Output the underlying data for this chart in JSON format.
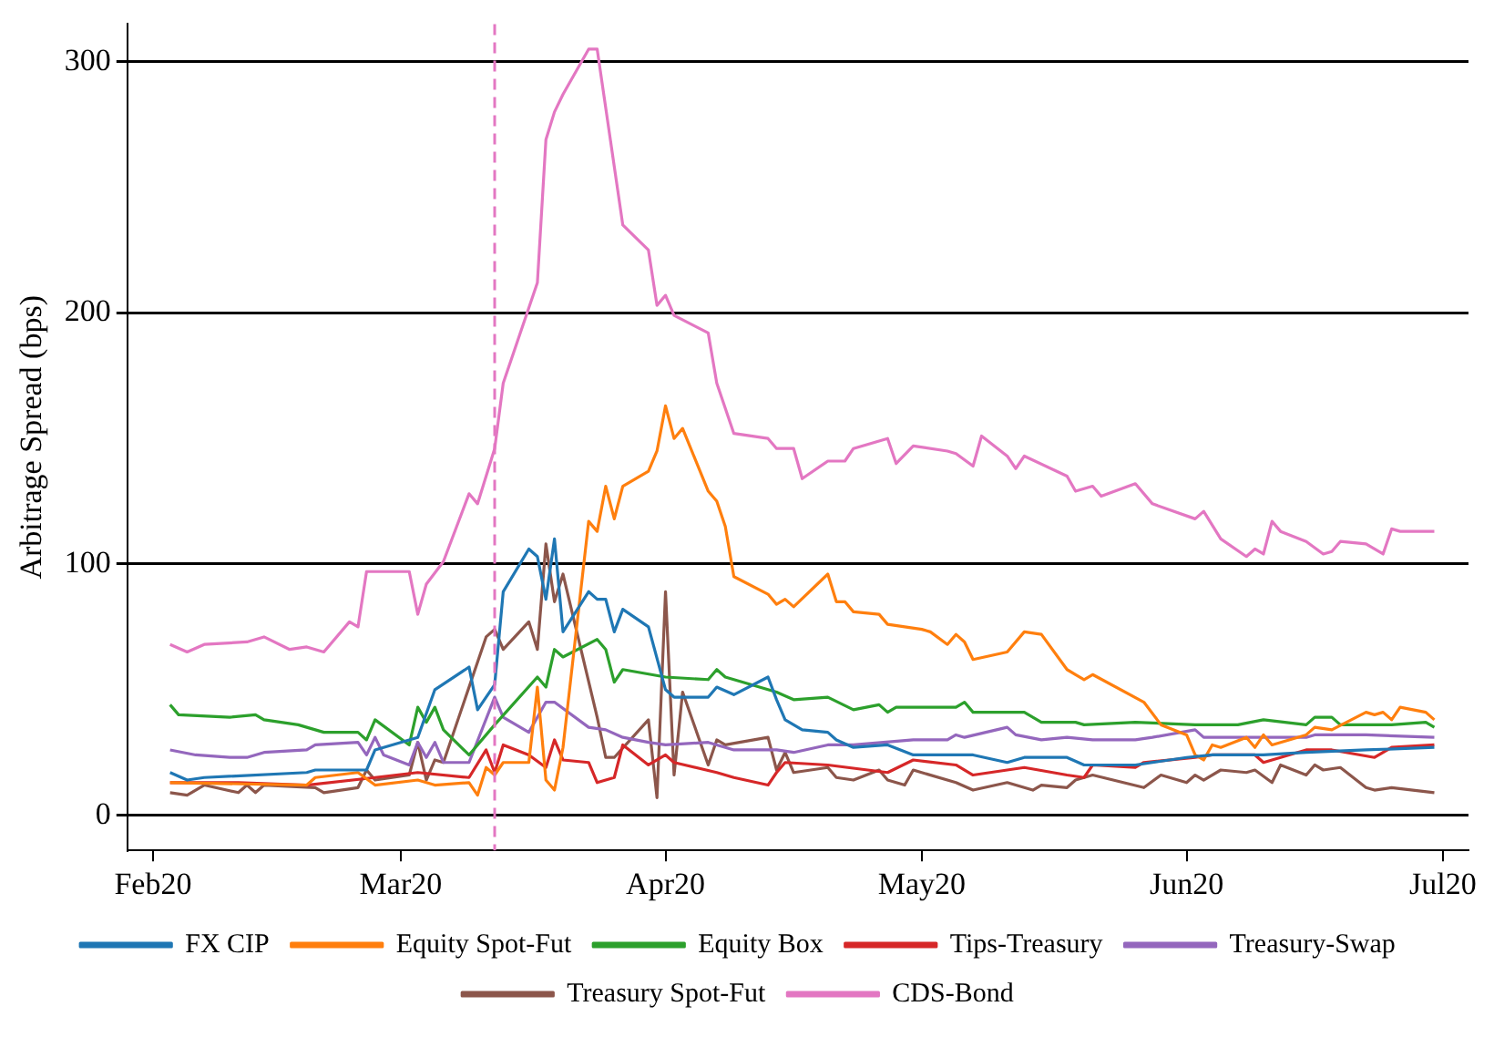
{
  "chart_data": {
    "type": "line",
    "ylabel": "Arbitrage Spread (bps)",
    "xlim": [
      "2020-01-29",
      "2020-07-04"
    ],
    "ylim": [
      -14,
      315
    ],
    "xticks": [
      {
        "value": "2020-02-01",
        "label": "Feb20"
      },
      {
        "value": "2020-03-01",
        "label": "Mar20"
      },
      {
        "value": "2020-04-01",
        "label": "Apr20"
      },
      {
        "value": "2020-05-01",
        "label": "May20"
      },
      {
        "value": "2020-06-01",
        "label": "Jun20"
      },
      {
        "value": "2020-07-01",
        "label": "Jul20"
      }
    ],
    "yticks": [
      0,
      100,
      200,
      300
    ],
    "grid": "y",
    "legend": "bottom",
    "marker": "none",
    "line_style": "solid",
    "ref_lines": [
      {
        "axis": "x",
        "value": "2020-03-12",
        "color": "#e377c2",
        "line_style": "dashed"
      }
    ],
    "series": [
      {
        "name": "FX CIP",
        "color": "#1f77b4",
        "x": [
          "2020-02-03",
          "2020-02-05",
          "2020-02-07",
          "2020-02-19",
          "2020-02-20",
          "2020-02-26",
          "2020-02-27",
          "2020-03-03",
          "2020-03-05",
          "2020-03-09",
          "2020-03-10",
          "2020-03-12",
          "2020-03-13",
          "2020-03-16",
          "2020-03-17",
          "2020-03-18",
          "2020-03-19",
          "2020-03-20",
          "2020-03-23",
          "2020-03-24",
          "2020-03-25",
          "2020-03-26",
          "2020-03-27",
          "2020-03-30",
          "2020-04-01",
          "2020-04-02",
          "2020-04-06",
          "2020-04-07",
          "2020-04-09",
          "2020-04-13",
          "2020-04-14",
          "2020-04-15",
          "2020-04-17",
          "2020-04-20",
          "2020-04-21",
          "2020-04-23",
          "2020-04-27",
          "2020-04-30",
          "2020-05-05",
          "2020-05-07",
          "2020-05-11",
          "2020-05-13",
          "2020-05-18",
          "2020-05-20",
          "2020-05-26",
          "2020-06-01",
          "2020-06-04",
          "2020-06-10",
          "2020-06-15",
          "2020-06-22",
          "2020-06-30"
        ],
        "values": [
          17,
          14,
          15,
          17,
          18,
          18,
          26,
          31,
          50,
          59,
          42,
          52,
          89,
          106,
          103,
          86,
          110,
          73,
          89,
          86,
          86,
          73,
          82,
          75,
          50,
          47,
          47,
          51,
          48,
          55,
          46,
          38,
          34,
          33,
          30,
          27,
          28,
          24,
          24,
          24,
          21,
          23,
          23,
          20,
          20,
          23,
          24,
          24,
          25,
          26,
          27
        ]
      },
      {
        "name": "Equity Spot-Fut",
        "color": "#ff7f0e",
        "x": [
          "2020-02-03",
          "2020-02-19",
          "2020-02-20",
          "2020-02-25",
          "2020-02-27",
          "2020-03-03",
          "2020-03-05",
          "2020-03-09",
          "2020-03-10",
          "2020-03-11",
          "2020-03-12",
          "2020-03-13",
          "2020-03-16",
          "2020-03-17",
          "2020-03-18",
          "2020-03-19",
          "2020-03-20",
          "2020-03-23",
          "2020-03-24",
          "2020-03-25",
          "2020-03-26",
          "2020-03-27",
          "2020-03-30",
          "2020-03-31",
          "2020-04-01",
          "2020-04-02",
          "2020-04-03",
          "2020-04-06",
          "2020-04-07",
          "2020-04-08",
          "2020-04-09",
          "2020-04-13",
          "2020-04-14",
          "2020-04-15",
          "2020-04-16",
          "2020-04-20",
          "2020-04-21",
          "2020-04-22",
          "2020-04-23",
          "2020-04-26",
          "2020-04-27",
          "2020-05-01",
          "2020-05-02",
          "2020-05-04",
          "2020-05-05",
          "2020-05-06",
          "2020-05-07",
          "2020-05-11",
          "2020-05-13",
          "2020-05-15",
          "2020-05-18",
          "2020-05-19",
          "2020-05-20",
          "2020-05-21",
          "2020-05-27",
          "2020-05-29",
          "2020-06-01",
          "2020-06-02",
          "2020-06-03",
          "2020-06-04",
          "2020-06-05",
          "2020-06-08",
          "2020-06-09",
          "2020-06-10",
          "2020-06-11",
          "2020-06-15",
          "2020-06-16",
          "2020-06-18",
          "2020-06-22",
          "2020-06-23",
          "2020-06-24",
          "2020-06-25",
          "2020-06-26",
          "2020-06-29",
          "2020-06-30"
        ],
        "values": [
          13,
          12,
          15,
          17,
          12,
          14,
          12,
          13,
          8,
          19,
          16,
          21,
          21,
          51,
          14,
          10,
          27,
          117,
          113,
          131,
          118,
          131,
          137,
          145,
          163,
          150,
          154,
          129,
          125,
          115,
          95,
          88,
          84,
          86,
          83,
          96,
          85,
          85,
          81,
          80,
          76,
          74,
          73,
          68,
          72,
          69,
          62,
          65,
          73,
          72,
          58,
          56,
          54,
          56,
          45,
          36,
          32,
          24,
          22,
          28,
          27,
          31,
          27,
          32,
          28,
          32,
          35,
          34,
          41,
          40,
          41,
          38,
          43,
          41,
          38
        ]
      },
      {
        "name": "Equity Box",
        "color": "#2ca02c",
        "x": [
          "2020-02-03",
          "2020-02-04",
          "2020-02-10",
          "2020-02-13",
          "2020-02-14",
          "2020-02-18",
          "2020-02-21",
          "2020-02-25",
          "2020-02-26",
          "2020-02-27",
          "2020-03-02",
          "2020-03-03",
          "2020-03-04",
          "2020-03-05",
          "2020-03-06",
          "2020-03-09",
          "2020-03-12",
          "2020-03-17",
          "2020-03-18",
          "2020-03-19",
          "2020-03-20",
          "2020-03-24",
          "2020-03-25",
          "2020-03-26",
          "2020-03-27",
          "2020-04-01",
          "2020-04-06",
          "2020-04-07",
          "2020-04-08",
          "2020-04-14",
          "2020-04-16",
          "2020-04-20",
          "2020-04-23",
          "2020-04-26",
          "2020-04-27",
          "2020-04-28",
          "2020-05-05",
          "2020-05-06",
          "2020-05-07",
          "2020-05-13",
          "2020-05-15",
          "2020-05-19",
          "2020-05-20",
          "2020-05-26",
          "2020-06-02",
          "2020-06-07",
          "2020-06-10",
          "2020-06-15",
          "2020-06-16",
          "2020-06-18",
          "2020-06-19",
          "2020-06-25",
          "2020-06-29",
          "2020-06-30"
        ],
        "values": [
          44,
          40,
          39,
          40,
          38,
          36,
          33,
          33,
          30,
          38,
          28,
          43,
          37,
          43,
          34,
          24,
          36,
          55,
          51,
          66,
          63,
          70,
          66,
          53,
          58,
          55,
          54,
          58,
          55,
          49,
          46,
          47,
          42,
          44,
          41,
          43,
          43,
          45,
          41,
          41,
          37,
          37,
          36,
          37,
          36,
          36,
          38,
          36,
          39,
          39,
          36,
          36,
          37,
          35
        ]
      },
      {
        "name": "Tips-Treasury",
        "color": "#d62728",
        "x": [
          "2020-02-03",
          "2020-02-11",
          "2020-02-19",
          "2020-02-27",
          "2020-03-03",
          "2020-03-09",
          "2020-03-11",
          "2020-03-12",
          "2020-03-13",
          "2020-03-16",
          "2020-03-18",
          "2020-03-19",
          "2020-03-20",
          "2020-03-23",
          "2020-03-24",
          "2020-03-26",
          "2020-03-27",
          "2020-03-30",
          "2020-04-01",
          "2020-04-02",
          "2020-04-07",
          "2020-04-09",
          "2020-04-13",
          "2020-04-14",
          "2020-04-15",
          "2020-04-20",
          "2020-04-27",
          "2020-04-30",
          "2020-05-05",
          "2020-05-07",
          "2020-05-13",
          "2020-05-18",
          "2020-05-20",
          "2020-05-21",
          "2020-05-26",
          "2020-05-27",
          "2020-06-02",
          "2020-06-04",
          "2020-06-09",
          "2020-06-10",
          "2020-06-15",
          "2020-06-18",
          "2020-06-23",
          "2020-06-25",
          "2020-06-30"
        ],
        "values": [
          13,
          13,
          12,
          15,
          17,
          15,
          26,
          17,
          28,
          24,
          19,
          30,
          22,
          21,
          13,
          15,
          28,
          20,
          24,
          21,
          17,
          15,
          12,
          17,
          21,
          20,
          17,
          22,
          20,
          16,
          19,
          16,
          15,
          20,
          19,
          21,
          23,
          24,
          24,
          21,
          26,
          26,
          23,
          27,
          28
        ]
      },
      {
        "name": "Treasury-Swap",
        "color": "#9467bd",
        "x": [
          "2020-02-03",
          "2020-02-06",
          "2020-02-10",
          "2020-02-12",
          "2020-02-14",
          "2020-02-19",
          "2020-02-20",
          "2020-02-25",
          "2020-02-26",
          "2020-02-27",
          "2020-02-28",
          "2020-03-02",
          "2020-03-03",
          "2020-03-04",
          "2020-03-05",
          "2020-03-06",
          "2020-03-09",
          "2020-03-12",
          "2020-03-13",
          "2020-03-16",
          "2020-03-18",
          "2020-03-19",
          "2020-03-23",
          "2020-03-25",
          "2020-03-27",
          "2020-03-30",
          "2020-04-01",
          "2020-04-06",
          "2020-04-09",
          "2020-04-14",
          "2020-04-16",
          "2020-04-20",
          "2020-04-23",
          "2020-04-30",
          "2020-05-04",
          "2020-05-05",
          "2020-05-06",
          "2020-05-11",
          "2020-05-12",
          "2020-05-15",
          "2020-05-18",
          "2020-05-21",
          "2020-05-26",
          "2020-05-28",
          "2020-06-02",
          "2020-06-03",
          "2020-06-07",
          "2020-06-15",
          "2020-06-16",
          "2020-06-22",
          "2020-06-30"
        ],
        "values": [
          26,
          24,
          23,
          23,
          25,
          26,
          28,
          29,
          24,
          31,
          24,
          20,
          29,
          23,
          29,
          21,
          21,
          47,
          39,
          33,
          45,
          45,
          35,
          34,
          31,
          29,
          28,
          29,
          26,
          26,
          25,
          28,
          28,
          30,
          30,
          32,
          31,
          35,
          32,
          30,
          31,
          30,
          30,
          31,
          34,
          31,
          31,
          31,
          32,
          32,
          31
        ]
      },
      {
        "name": "Treasury Spot-Fut",
        "color": "#8c564b",
        "x": [
          "2020-02-03",
          "2020-02-05",
          "2020-02-07",
          "2020-02-11",
          "2020-02-12",
          "2020-02-13",
          "2020-02-14",
          "2020-02-20",
          "2020-02-21",
          "2020-02-25",
          "2020-02-26",
          "2020-02-27",
          "2020-03-02",
          "2020-03-03",
          "2020-03-04",
          "2020-03-05",
          "2020-03-06",
          "2020-03-11",
          "2020-03-12",
          "2020-03-13",
          "2020-03-16",
          "2020-03-17",
          "2020-03-18",
          "2020-03-19",
          "2020-03-20",
          "2020-03-24",
          "2020-03-25",
          "2020-03-26",
          "2020-03-30",
          "2020-03-31",
          "2020-04-01",
          "2020-04-02",
          "2020-04-03",
          "2020-04-06",
          "2020-04-07",
          "2020-04-08",
          "2020-04-13",
          "2020-04-14",
          "2020-04-15",
          "2020-04-16",
          "2020-04-20",
          "2020-04-21",
          "2020-04-23",
          "2020-04-26",
          "2020-04-27",
          "2020-04-29",
          "2020-04-30",
          "2020-05-05",
          "2020-05-07",
          "2020-05-11",
          "2020-05-14",
          "2020-05-15",
          "2020-05-18",
          "2020-05-19",
          "2020-05-21",
          "2020-05-27",
          "2020-05-29",
          "2020-06-01",
          "2020-06-02",
          "2020-06-03",
          "2020-06-05",
          "2020-06-08",
          "2020-06-09",
          "2020-06-11",
          "2020-06-12",
          "2020-06-15",
          "2020-06-16",
          "2020-06-17",
          "2020-06-19",
          "2020-06-22",
          "2020-06-23",
          "2020-06-25",
          "2020-06-30"
        ],
        "values": [
          9,
          8,
          12,
          9,
          12,
          9,
          12,
          11,
          9,
          11,
          18,
          14,
          16,
          29,
          14,
          22,
          21,
          71,
          74,
          66,
          77,
          66,
          108,
          85,
          96,
          39,
          23,
          23,
          38,
          7,
          89,
          16,
          49,
          20,
          30,
          28,
          31,
          18,
          25,
          17,
          19,
          15,
          14,
          18,
          14,
          12,
          18,
          13,
          10,
          13,
          10,
          12,
          11,
          14,
          16,
          11,
          16,
          13,
          16,
          14,
          18,
          17,
          18,
          13,
          20,
          16,
          20,
          18,
          19,
          11,
          10,
          11,
          9
        ]
      },
      {
        "name": "CDS-Bond",
        "color": "#e377c2",
        "x": [
          "2020-02-03",
          "2020-02-05",
          "2020-02-07",
          "2020-02-12",
          "2020-02-14",
          "2020-02-17",
          "2020-02-19",
          "2020-02-21",
          "2020-02-24",
          "2020-02-25",
          "2020-02-26",
          "2020-03-02",
          "2020-03-03",
          "2020-03-04",
          "2020-03-06",
          "2020-03-09",
          "2020-03-10",
          "2020-03-12",
          "2020-03-13",
          "2020-03-17",
          "2020-03-18",
          "2020-03-19",
          "2020-03-20",
          "2020-03-23",
          "2020-03-24",
          "2020-03-27",
          "2020-03-30",
          "2020-03-31",
          "2020-04-01",
          "2020-04-02",
          "2020-04-06",
          "2020-04-07",
          "2020-04-09",
          "2020-04-13",
          "2020-04-14",
          "2020-04-16",
          "2020-04-17",
          "2020-04-20",
          "2020-04-22",
          "2020-04-23",
          "2020-04-27",
          "2020-04-28",
          "2020-04-30",
          "2020-05-04",
          "2020-05-05",
          "2020-05-07",
          "2020-05-08",
          "2020-05-11",
          "2020-05-12",
          "2020-05-13",
          "2020-05-18",
          "2020-05-19",
          "2020-05-21",
          "2020-05-22",
          "2020-05-26",
          "2020-05-28",
          "2020-06-02",
          "2020-06-03",
          "2020-06-05",
          "2020-06-08",
          "2020-06-09",
          "2020-06-10",
          "2020-06-11",
          "2020-06-12",
          "2020-06-15",
          "2020-06-17",
          "2020-06-18",
          "2020-06-19",
          "2020-06-22",
          "2020-06-24",
          "2020-06-25",
          "2020-06-26",
          "2020-06-30"
        ],
        "values": [
          68,
          65,
          68,
          69,
          71,
          66,
          67,
          65,
          77,
          75,
          97,
          97,
          80,
          92,
          101,
          128,
          124,
          146,
          172,
          212,
          269,
          280,
          287,
          305,
          305,
          235,
          225,
          203,
          207,
          199,
          192,
          172,
          152,
          150,
          146,
          146,
          134,
          141,
          141,
          146,
          150,
          140,
          147,
          145,
          144,
          139,
          151,
          143,
          138,
          143,
          135,
          129,
          131,
          127,
          132,
          124,
          118,
          121,
          110,
          103,
          106,
          104,
          117,
          113,
          109,
          104,
          105,
          109,
          108,
          104,
          114,
          113,
          113
        ]
      }
    ]
  }
}
